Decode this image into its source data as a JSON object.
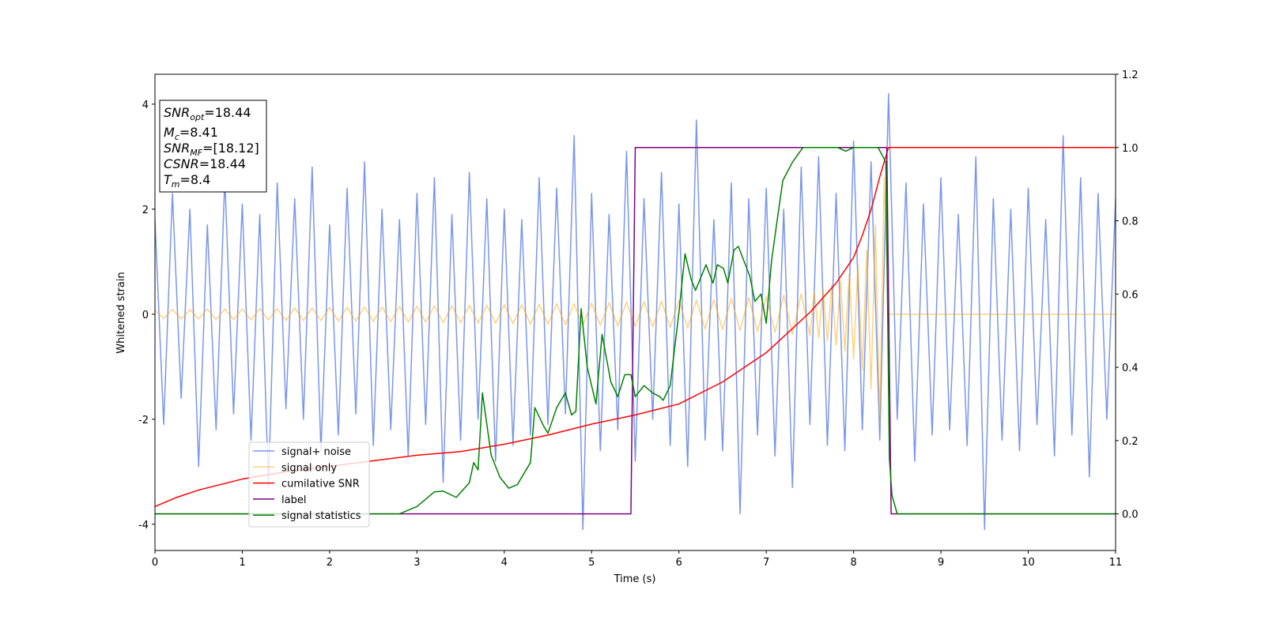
{
  "chart_data": {
    "type": "line",
    "xlabel": "Time (s)",
    "ylabel": "Whitened strain",
    "xlim": [
      0,
      11
    ],
    "xticks": [
      0,
      1,
      2,
      3,
      4,
      5,
      6,
      7,
      8,
      9,
      10,
      11
    ],
    "ylim": [
      -4.5,
      4.57
    ],
    "yticks": [
      -4,
      -2,
      0,
      2,
      4
    ],
    "y2lim": [
      -0.1,
      1.2
    ],
    "y2ticks": [
      {
        "value": 0,
        "label": "0.0"
      },
      {
        "value": 0.2,
        "label": "0.2"
      },
      {
        "value": 0.4,
        "label": "0.4"
      },
      {
        "value": 0.6,
        "label": "0.6"
      },
      {
        "value": 0.8,
        "label": "0.8"
      },
      {
        "value": 1.0,
        "label": "1.0"
      },
      {
        "value": 1.2,
        "label": "1.2"
      }
    ],
    "text_box": [
      {
        "symbol": "SNR",
        "subscript": "opt",
        "value": "=18.44"
      },
      {
        "symbol": "M",
        "subscript": "c",
        "value": "=8.41"
      },
      {
        "symbol": "SNR",
        "subscript": "MF",
        "value": "=[18.12]"
      },
      {
        "symbol": "CSNR",
        "value": "=18.44"
      },
      {
        "symbol": "T",
        "subscript": "m",
        "value": "=8.4"
      }
    ],
    "series": [
      {
        "name": "signal+ noise",
        "color": "#4169e1",
        "opacity": 0.7,
        "x": [
          0,
          0.1,
          0.2,
          0.3,
          0.4,
          0.5,
          0.6,
          0.7,
          0.8,
          0.9,
          1,
          1.1,
          1.2,
          1.3,
          1.4,
          1.5,
          1.6,
          1.7,
          1.8,
          1.9,
          2,
          2.1,
          2.2,
          2.3,
          2.4,
          2.5,
          2.6,
          2.7,
          2.8,
          2.9,
          3,
          3.1,
          3.2,
          3.3,
          3.4,
          3.5,
          3.6,
          3.7,
          3.8,
          3.9,
          4,
          4.1,
          4.2,
          4.3,
          4.4,
          4.5,
          4.6,
          4.7,
          4.8,
          4.9,
          5,
          5.1,
          5.2,
          5.3,
          5.4,
          5.5,
          5.6,
          5.7,
          5.8,
          5.9,
          6,
          6.1,
          6.2,
          6.3,
          6.4,
          6.5,
          6.6,
          6.7,
          6.8,
          6.9,
          7,
          7.1,
          7.2,
          7.3,
          7.4,
          7.5,
          7.6,
          7.7,
          7.8,
          7.9,
          8,
          8.1,
          8.2,
          8.3,
          8.4,
          8.5,
          8.6,
          8.7,
          8.8,
          8.9,
          9,
          9.1,
          9.2,
          9.3,
          9.4,
          9.5,
          9.6,
          9.7,
          9.8,
          9.9,
          10,
          10.1,
          10.2,
          10.3,
          10.4,
          10.5,
          10.6,
          10.7,
          10.8,
          10.9,
          11
        ],
        "values": [
          1.8,
          -2.1,
          2.3,
          -1.6,
          2.0,
          -2.9,
          1.7,
          -2.2,
          2.6,
          -1.9,
          2.1,
          -2.4,
          1.9,
          -3.3,
          2.5,
          -1.8,
          2.2,
          -2.0,
          2.8,
          -2.6,
          1.7,
          -2.3,
          2.4,
          -1.9,
          2.9,
          -2.5,
          2.0,
          -2.2,
          1.8,
          -2.7,
          2.3,
          -2.1,
          2.6,
          -3.2,
          1.9,
          -2.4,
          2.7,
          -2.0,
          2.2,
          -2.8,
          2.0,
          -2.5,
          1.8,
          -2.3,
          2.6,
          -2.1,
          2.4,
          -1.9,
          3.4,
          -4.1,
          2.3,
          -2.6,
          1.9,
          -2.2,
          3.1,
          -2.8,
          2.2,
          -2.0,
          2.7,
          -2.5,
          2.1,
          -2.9,
          3.7,
          -2.4,
          1.8,
          -2.6,
          2.5,
          -3.8,
          2.2,
          -2.3,
          2.4,
          -2.7,
          2.0,
          -3.3,
          2.8,
          -2.1,
          3.0,
          -2.5,
          2.3,
          -2.6,
          3.3,
          -2.2,
          2.9,
          -2.4,
          4.2,
          -2.0,
          2.5,
          -2.8,
          2.1,
          -2.3,
          2.6,
          -2.2,
          1.9,
          -2.5,
          3.0,
          -4.1,
          2.2,
          -2.4,
          2.0,
          -2.6,
          2.4,
          -2.1,
          1.8,
          -2.7,
          3.4,
          -2.3,
          2.6,
          -3.1,
          2.3,
          -2.0,
          2.2
        ]
      },
      {
        "name": "signal only",
        "color": "#ffa500",
        "opacity": 0.5,
        "x": [
          0,
          0.1,
          0.2,
          0.3,
          0.4,
          0.5,
          0.6,
          0.7,
          0.8,
          0.9,
          1,
          1.1,
          1.2,
          1.3,
          1.4,
          1.5,
          1.6,
          1.7,
          1.8,
          1.9,
          2,
          2.1,
          2.2,
          2.3,
          2.4,
          2.5,
          2.6,
          2.7,
          2.8,
          2.9,
          3,
          3.1,
          3.2,
          3.3,
          3.4,
          3.5,
          3.6,
          3.7,
          3.8,
          3.9,
          4,
          4.1,
          4.2,
          4.3,
          4.4,
          4.5,
          4.6,
          4.7,
          4.8,
          4.9,
          5,
          5.1,
          5.2,
          5.3,
          5.4,
          5.5,
          5.6,
          5.7,
          5.8,
          5.9,
          6,
          6.1,
          6.2,
          6.3,
          6.4,
          6.5,
          6.6,
          6.7,
          6.8,
          6.9,
          7,
          7.1,
          7.2,
          7.3,
          7.4,
          7.5,
          7.55,
          7.6,
          7.65,
          7.7,
          7.75,
          7.8,
          7.85,
          7.9,
          7.95,
          8,
          8.05,
          8.1,
          8.15,
          8.2,
          8.25,
          8.3,
          8.35,
          8.4,
          11
        ],
        "values": [
          0.08,
          -0.08,
          0.09,
          -0.09,
          0.09,
          -0.09,
          0.1,
          -0.1,
          0.1,
          -0.1,
          0.1,
          -0.11,
          0.11,
          -0.11,
          0.11,
          -0.12,
          0.12,
          -0.12,
          0.12,
          -0.12,
          0.13,
          -0.13,
          0.13,
          -0.13,
          0.14,
          -0.14,
          0.14,
          -0.14,
          0.15,
          -0.15,
          0.15,
          -0.15,
          0.16,
          -0.16,
          0.16,
          -0.16,
          0.17,
          -0.17,
          0.17,
          -0.17,
          0.18,
          -0.18,
          0.18,
          -0.19,
          0.19,
          -0.19,
          0.2,
          -0.2,
          0.2,
          -0.21,
          0.21,
          -0.21,
          0.22,
          -0.22,
          0.23,
          -0.23,
          0.24,
          -0.24,
          0.25,
          -0.25,
          0.26,
          -0.26,
          0.27,
          -0.28,
          0.28,
          -0.29,
          0.3,
          -0.31,
          0.32,
          -0.33,
          0.34,
          -0.35,
          0.36,
          -0.38,
          0.39,
          -0.41,
          0.43,
          -0.45,
          0.48,
          -0.51,
          0.55,
          -0.59,
          0.64,
          -0.7,
          0.77,
          -0.85,
          0.95,
          -1.07,
          1.22,
          -1.42,
          1.7,
          -2.1,
          2.6,
          0,
          0
        ]
      },
      {
        "name": "cumilative SNR",
        "color": "#ff0000",
        "axis": "y2",
        "x": [
          0,
          0.25,
          0.5,
          1,
          1.5,
          2,
          2.5,
          3,
          3.5,
          4,
          4.5,
          5,
          5.5,
          6,
          6.5,
          7,
          7.5,
          7.8,
          8,
          8.1,
          8.2,
          8.3,
          8.4,
          11
        ],
        "values": [
          0.02,
          0.045,
          0.065,
          0.095,
          0.115,
          0.13,
          0.145,
          0.16,
          0.17,
          0.19,
          0.215,
          0.245,
          0.27,
          0.3,
          0.36,
          0.44,
          0.55,
          0.63,
          0.7,
          0.76,
          0.83,
          0.92,
          1.0,
          1.0
        ]
      },
      {
        "name": "label",
        "color": "#800080",
        "axis": "y2",
        "x": [
          0,
          5.45,
          5.5,
          8.38,
          8.43,
          11
        ],
        "values": [
          0,
          0,
          1,
          1,
          0,
          0
        ]
      },
      {
        "name": "signal statistics",
        "color": "#008000",
        "axis": "y2",
        "x": [
          0,
          1,
          2,
          2.8,
          3.0,
          3.1,
          3.2,
          3.3,
          3.45,
          3.6,
          3.65,
          3.7,
          3.75,
          3.85,
          3.95,
          4.05,
          4.15,
          4.3,
          4.35,
          4.45,
          4.5,
          4.6,
          4.7,
          4.77,
          4.82,
          4.88,
          4.95,
          5.05,
          5.12,
          5.22,
          5.3,
          5.38,
          5.45,
          5.5,
          5.6,
          5.7,
          5.78,
          5.82,
          5.9,
          6.0,
          6.07,
          6.14,
          6.19,
          6.31,
          6.39,
          6.44,
          6.51,
          6.56,
          6.63,
          6.68,
          6.81,
          6.87,
          6.94,
          7.0,
          7.06,
          7.13,
          7.19,
          7.3,
          7.33,
          7.42,
          7.82,
          7.91,
          8.0,
          8.28,
          8.37,
          8.41,
          8.44,
          8.5,
          11
        ],
        "values": [
          0,
          0,
          0,
          0,
          0.02,
          0.04,
          0.06,
          0.062,
          0.045,
          0.085,
          0.14,
          0.12,
          0.33,
          0.16,
          0.1,
          0.07,
          0.08,
          0.14,
          0.29,
          0.24,
          0.22,
          0.29,
          0.33,
          0.27,
          0.28,
          0.56,
          0.4,
          0.3,
          0.49,
          0.36,
          0.32,
          0.38,
          0.38,
          0.32,
          0.35,
          0.33,
          0.32,
          0.31,
          0.35,
          0.55,
          0.71,
          0.64,
          0.61,
          0.68,
          0.63,
          0.68,
          0.67,
          0.63,
          0.72,
          0.73,
          0.65,
          0.58,
          0.6,
          0.52,
          0.69,
          0.81,
          0.91,
          0.96,
          0.97,
          1.0,
          1.0,
          0.99,
          1.0,
          1.0,
          0.96,
          0.15,
          0.05,
          0,
          0
        ]
      }
    ]
  }
}
